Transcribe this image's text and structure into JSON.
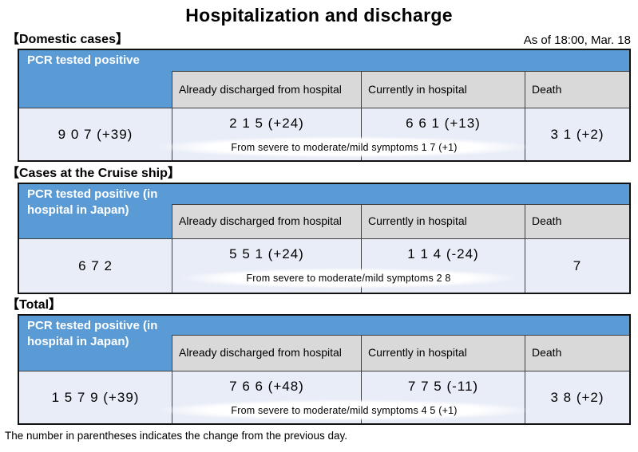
{
  "page": {
    "title": "Hospitalization and discharge",
    "as_of": "As of 18:00, Mar. 18",
    "footnote": "The number in parentheses indicates the change from the previous day."
  },
  "columns": {
    "discharged": "Already discharged from hospital",
    "in_hospital": "Currently in hospital",
    "death": "Death"
  },
  "colors": {
    "header_blue": "#5B9BD5",
    "header_gray": "#D9D9D9",
    "row_background": "#E9EDF7",
    "border": "#3f3f3f"
  },
  "sections": [
    {
      "label": "【Domestic cases】",
      "row_header": "PCR tested positive",
      "positive": "9 0 7  (+39)",
      "discharged": "2 1 5  (+24)",
      "in_hospital": "6 6 1  (+13)",
      "death": "3 1  (+2)",
      "severe_note": "From severe to moderate/mild symptoms  1 7 (+1)"
    },
    {
      "label": "【Cases at the Cruise ship】",
      "row_header": "PCR tested positive (in hospital in Japan)",
      "positive": "6 7 2",
      "discharged": "5 5 1  (+24)",
      "in_hospital": "1 1 4  (-24)",
      "death": "7",
      "severe_note": "From severe to moderate/mild symptoms  2 8"
    },
    {
      "label": "【Total】",
      "row_header": "PCR tested positive (in hospital in Japan)",
      "positive": "1 5 7 9  (+39)",
      "discharged": "7 6 6  (+48)",
      "in_hospital": "7 7 5  (-11)",
      "death": "3 8  (+2)",
      "severe_note": "From severe to moderate/mild symptoms  4 5 (+1)"
    }
  ]
}
